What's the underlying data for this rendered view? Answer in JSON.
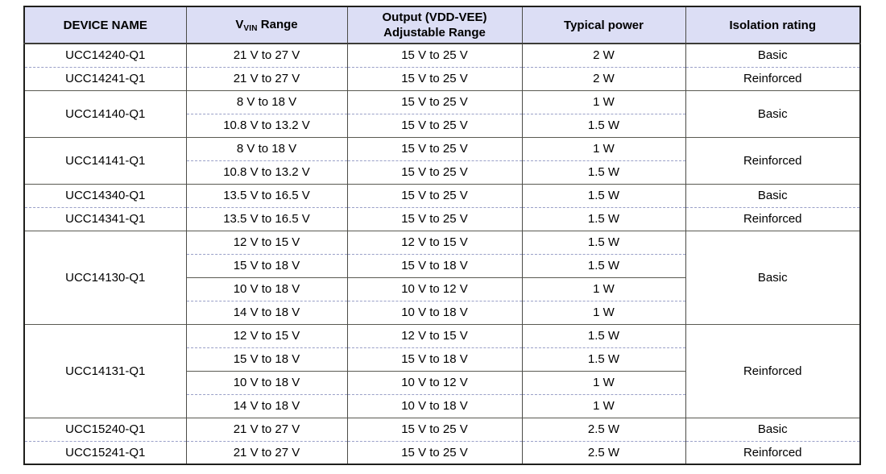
{
  "table": {
    "header": {
      "device_name": "DEVICE NAME",
      "vin_base": "V",
      "vin_sub": "VIN",
      "vin_rest": " Range",
      "output_line1": "Output (VDD-VEE)",
      "output_line2": "Adjustable Range",
      "typical_power": "Typical power",
      "isolation": "Isolation rating"
    },
    "colors": {
      "header_bg": "#dcdef5",
      "outer_border": "#1f1f1c",
      "dark_separator": "#5a5a52",
      "light_separator": "#9aa0c8"
    },
    "groups": [
      {
        "device": "UCC14240-Q1",
        "isolation": "Basic",
        "rows": [
          {
            "vin": "21 V to 27 V",
            "output": "15 V to 25 V",
            "power": "2 W"
          }
        ]
      },
      {
        "device": "UCC14241-Q1",
        "isolation": "Reinforced",
        "rows": [
          {
            "vin": "21 V to 27 V",
            "output": "15 V to 25 V",
            "power": "2 W"
          }
        ]
      },
      {
        "device": "UCC14140-Q1",
        "isolation": "Basic",
        "rows": [
          {
            "vin": "8 V to 18 V",
            "output": "15 V to 25 V",
            "power": "1 W"
          },
          {
            "vin": "10.8 V to 13.2 V",
            "output": "15 V to 25 V",
            "power": "1.5 W"
          }
        ]
      },
      {
        "device": "UCC14141-Q1",
        "isolation": "Reinforced",
        "rows": [
          {
            "vin": "8 V to 18 V",
            "output": "15 V to 25 V",
            "power": "1 W"
          },
          {
            "vin": "10.8 V to 13.2 V",
            "output": "15 V to 25 V",
            "power": "1.5 W"
          }
        ]
      },
      {
        "device": "UCC14340-Q1",
        "isolation": "Basic",
        "rows": [
          {
            "vin": "13.5 V to 16.5 V",
            "output": "15 V to 25 V",
            "power": "1.5 W"
          }
        ]
      },
      {
        "device": "UCC14341-Q1",
        "isolation": "Reinforced",
        "rows": [
          {
            "vin": "13.5 V to 16.5 V",
            "output": "15 V to 25 V",
            "power": "1.5 W"
          }
        ]
      },
      {
        "device": "UCC14130-Q1",
        "isolation": "Basic",
        "rows": [
          {
            "vin": "12 V to 15 V",
            "output": "12 V to 15 V",
            "power": "1.5 W"
          },
          {
            "vin": "15 V to 18 V",
            "output": "15 V to 18 V",
            "power": "1.5 W"
          },
          {
            "vin": "10 V to 18 V",
            "output": "10 V to 12 V",
            "power": "1 W"
          },
          {
            "vin": "14 V to 18 V",
            "output": "10 V to 18 V",
            "power": "1 W"
          }
        ]
      },
      {
        "device": "UCC14131-Q1",
        "isolation": "Reinforced",
        "rows": [
          {
            "vin": "12 V to 15 V",
            "output": "12 V to 15 V",
            "power": "1.5 W"
          },
          {
            "vin": "15 V to 18 V",
            "output": "15 V to 18 V",
            "power": "1.5 W"
          },
          {
            "vin": "10 V to 18 V",
            "output": "10 V to 12 V",
            "power": "1 W"
          },
          {
            "vin": "14 V to 18 V",
            "output": "10 V to 18 V",
            "power": "1 W"
          }
        ]
      },
      {
        "device": "UCC15240-Q1",
        "isolation": "Basic",
        "rows": [
          {
            "vin": "21 V to 27 V",
            "output": "15 V to 25 V",
            "power": "2.5 W"
          }
        ]
      },
      {
        "device": "UCC15241-Q1",
        "isolation": "Reinforced",
        "rows": [
          {
            "vin": "21 V to 27 V",
            "output": "15 V to 25 V",
            "power": "2.5 W"
          }
        ]
      }
    ]
  }
}
